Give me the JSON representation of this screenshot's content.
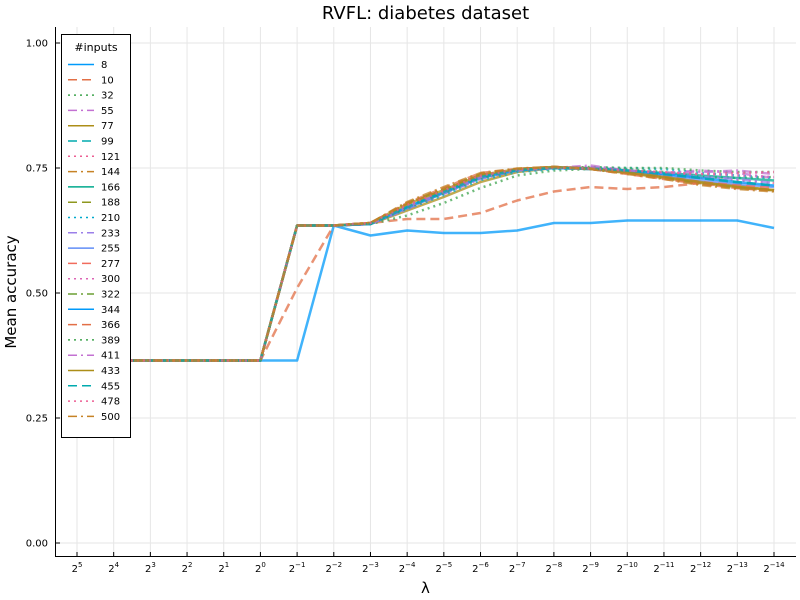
{
  "chart_data": {
    "type": "line",
    "title": "RVFL: diabetes dataset",
    "xlabel": "λ",
    "ylabel": "Mean accuracy",
    "ylim": [
      -0.03,
      1.03
    ],
    "grid": true,
    "legend": {
      "title": "#inputs",
      "placement": "top-left"
    },
    "categories": [
      "2^5",
      "2^4",
      "2^3",
      "2^2",
      "2^1",
      "2^0",
      "2^-1",
      "2^-2",
      "2^-3",
      "2^-4",
      "2^-5",
      "2^-6",
      "2^-7",
      "2^-8",
      "2^-9",
      "2^-10",
      "2^-11",
      "2^-12",
      "2^-13",
      "2^-14"
    ],
    "x_ticks": [
      {
        "base": "2",
        "exp": "5"
      },
      {
        "base": "2",
        "exp": "4"
      },
      {
        "base": "2",
        "exp": "3"
      },
      {
        "base": "2",
        "exp": "2"
      },
      {
        "base": "2",
        "exp": "1"
      },
      {
        "base": "2",
        "exp": "0"
      },
      {
        "base": "2",
        "exp": "−1"
      },
      {
        "base": "2",
        "exp": "−2"
      },
      {
        "base": "2",
        "exp": "−3"
      },
      {
        "base": "2",
        "exp": "−4"
      },
      {
        "base": "2",
        "exp": "−5"
      },
      {
        "base": "2",
        "exp": "−6"
      },
      {
        "base": "2",
        "exp": "−7"
      },
      {
        "base": "2",
        "exp": "−8"
      },
      {
        "base": "2",
        "exp": "−9"
      },
      {
        "base": "2",
        "exp": "−10"
      },
      {
        "base": "2",
        "exp": "−11"
      },
      {
        "base": "2",
        "exp": "−12"
      },
      {
        "base": "2",
        "exp": "−13"
      },
      {
        "base": "2",
        "exp": "−14"
      }
    ],
    "y_ticks": [
      {
        "value": 0.0,
        "label": "0.00"
      },
      {
        "value": 0.25,
        "label": "0.25"
      },
      {
        "value": 0.5,
        "label": "0.50"
      },
      {
        "value": 0.75,
        "label": "0.75"
      },
      {
        "value": 1.0,
        "label": "1.00"
      }
    ],
    "palette": [
      "#009AFA",
      "#E26F46",
      "#3EA44E",
      "#C371D2",
      "#AC8E18",
      "#00AAAE",
      "#ED5E93",
      "#C68225",
      "#00A98D",
      "#8E971E",
      "#00A9CD",
      "#9B7FE9",
      "#618DF6",
      "#F16C5D",
      "#DD64B5",
      "#6C9F33",
      "#009AFA",
      "#E26F46",
      "#3EA44E",
      "#C371D2",
      "#AC8E18",
      "#00AAAE",
      "#ED5E93",
      "#C68225"
    ],
    "dash_styles": [
      "solid",
      "dash",
      "dot",
      "dashdot"
    ],
    "series": [
      {
        "name": "8",
        "values": [
          0.365,
          0.365,
          0.365,
          0.365,
          0.365,
          0.365,
          0.365,
          0.635,
          0.615,
          0.625,
          0.62,
          0.62,
          0.625,
          0.64,
          0.64,
          0.645,
          0.645,
          0.645,
          0.645,
          0.63
        ]
      },
      {
        "name": "10",
        "values": [
          0.365,
          0.365,
          0.365,
          0.365,
          0.365,
          0.365,
          0.51,
          0.635,
          0.64,
          0.648,
          0.648,
          0.66,
          0.685,
          0.703,
          0.712,
          0.708,
          0.712,
          0.72,
          0.71,
          0.705
        ]
      },
      {
        "name": "32",
        "values": [
          0.365,
          0.365,
          0.365,
          0.365,
          0.365,
          0.365,
          0.635,
          0.635,
          0.638,
          0.655,
          0.68,
          0.71,
          0.735,
          0.745,
          0.748,
          0.748,
          0.742,
          0.732,
          0.73,
          0.732
        ]
      },
      {
        "name": "55",
        "values": [
          0.365,
          0.365,
          0.365,
          0.365,
          0.365,
          0.365,
          0.635,
          0.635,
          0.638,
          0.668,
          0.698,
          0.728,
          0.745,
          0.75,
          0.755,
          0.745,
          0.74,
          0.745,
          0.74,
          0.73
        ]
      },
      {
        "name": "77",
        "values": [
          0.365,
          0.365,
          0.365,
          0.365,
          0.365,
          0.365,
          0.635,
          0.635,
          0.638,
          0.665,
          0.692,
          0.722,
          0.742,
          0.75,
          0.748,
          0.74,
          0.73,
          0.72,
          0.715,
          0.705
        ]
      },
      {
        "name": "99",
        "values": [
          0.365,
          0.365,
          0.365,
          0.365,
          0.365,
          0.365,
          0.635,
          0.635,
          0.638,
          0.67,
          0.7,
          0.73,
          0.745,
          0.75,
          0.748,
          0.742,
          0.735,
          0.73,
          0.72,
          0.715
        ]
      },
      {
        "name": "121",
        "values": [
          0.365,
          0.365,
          0.365,
          0.365,
          0.365,
          0.365,
          0.635,
          0.635,
          0.64,
          0.675,
          0.705,
          0.735,
          0.748,
          0.752,
          0.75,
          0.742,
          0.735,
          0.73,
          0.725,
          0.72
        ]
      },
      {
        "name": "144",
        "values": [
          0.365,
          0.365,
          0.365,
          0.365,
          0.365,
          0.365,
          0.635,
          0.635,
          0.64,
          0.68,
          0.708,
          0.738,
          0.748,
          0.752,
          0.748,
          0.74,
          0.73,
          0.72,
          0.712,
          0.705
        ]
      },
      {
        "name": "166",
        "values": [
          0.365,
          0.365,
          0.365,
          0.365,
          0.365,
          0.365,
          0.635,
          0.635,
          0.638,
          0.672,
          0.7,
          0.732,
          0.745,
          0.752,
          0.748,
          0.745,
          0.74,
          0.735,
          0.73,
          0.725
        ]
      },
      {
        "name": "188",
        "values": [
          0.365,
          0.365,
          0.365,
          0.365,
          0.365,
          0.365,
          0.635,
          0.635,
          0.64,
          0.678,
          0.706,
          0.736,
          0.748,
          0.752,
          0.749,
          0.741,
          0.733,
          0.722,
          0.712,
          0.705
        ]
      },
      {
        "name": "210",
        "values": [
          0.365,
          0.365,
          0.365,
          0.365,
          0.365,
          0.365,
          0.635,
          0.635,
          0.638,
          0.668,
          0.696,
          0.726,
          0.742,
          0.748,
          0.75,
          0.75,
          0.748,
          0.74,
          0.735,
          0.73
        ]
      },
      {
        "name": "233",
        "values": [
          0.365,
          0.365,
          0.365,
          0.365,
          0.365,
          0.365,
          0.635,
          0.635,
          0.638,
          0.668,
          0.7,
          0.73,
          0.745,
          0.75,
          0.752,
          0.745,
          0.738,
          0.732,
          0.728,
          0.72
        ]
      },
      {
        "name": "255",
        "values": [
          0.365,
          0.365,
          0.365,
          0.365,
          0.365,
          0.365,
          0.635,
          0.635,
          0.638,
          0.67,
          0.7,
          0.73,
          0.745,
          0.75,
          0.748,
          0.742,
          0.735,
          0.725,
          0.718,
          0.712
        ]
      },
      {
        "name": "277",
        "values": [
          0.365,
          0.365,
          0.365,
          0.365,
          0.365,
          0.365,
          0.635,
          0.635,
          0.64,
          0.678,
          0.705,
          0.735,
          0.748,
          0.752,
          0.749,
          0.742,
          0.732,
          0.722,
          0.715,
          0.71
        ]
      },
      {
        "name": "300",
        "values": [
          0.365,
          0.365,
          0.365,
          0.365,
          0.365,
          0.365,
          0.635,
          0.635,
          0.638,
          0.672,
          0.702,
          0.732,
          0.746,
          0.75,
          0.749,
          0.745,
          0.74,
          0.738,
          0.735,
          0.732
        ]
      },
      {
        "name": "322",
        "values": [
          0.365,
          0.365,
          0.365,
          0.365,
          0.365,
          0.365,
          0.635,
          0.635,
          0.64,
          0.68,
          0.708,
          0.738,
          0.748,
          0.752,
          0.748,
          0.74,
          0.73,
          0.718,
          0.71,
          0.705
        ]
      },
      {
        "name": "344",
        "values": [
          0.365,
          0.365,
          0.365,
          0.365,
          0.365,
          0.365,
          0.635,
          0.635,
          0.638,
          0.672,
          0.702,
          0.732,
          0.746,
          0.75,
          0.749,
          0.744,
          0.738,
          0.73,
          0.722,
          0.715
        ]
      },
      {
        "name": "366",
        "values": [
          0.365,
          0.365,
          0.365,
          0.365,
          0.365,
          0.365,
          0.635,
          0.635,
          0.64,
          0.68,
          0.71,
          0.74,
          0.748,
          0.752,
          0.748,
          0.738,
          0.728,
          0.718,
          0.71,
          0.705
        ]
      },
      {
        "name": "389",
        "values": [
          0.365,
          0.365,
          0.365,
          0.365,
          0.365,
          0.365,
          0.635,
          0.635,
          0.638,
          0.67,
          0.7,
          0.73,
          0.745,
          0.75,
          0.752,
          0.75,
          0.75,
          0.745,
          0.742,
          0.742
        ]
      },
      {
        "name": "411",
        "values": [
          0.365,
          0.365,
          0.365,
          0.365,
          0.365,
          0.365,
          0.635,
          0.635,
          0.638,
          0.672,
          0.702,
          0.732,
          0.746,
          0.75,
          0.752,
          0.745,
          0.74,
          0.742,
          0.745,
          0.738
        ]
      },
      {
        "name": "433",
        "values": [
          0.365,
          0.365,
          0.365,
          0.365,
          0.365,
          0.365,
          0.635,
          0.635,
          0.64,
          0.678,
          0.706,
          0.736,
          0.748,
          0.752,
          0.749,
          0.741,
          0.732,
          0.722,
          0.712,
          0.706
        ]
      },
      {
        "name": "455",
        "values": [
          0.365,
          0.365,
          0.365,
          0.365,
          0.365,
          0.365,
          0.635,
          0.635,
          0.638,
          0.672,
          0.702,
          0.732,
          0.746,
          0.75,
          0.749,
          0.745,
          0.738,
          0.73,
          0.722,
          0.715
        ]
      },
      {
        "name": "478",
        "values": [
          0.365,
          0.365,
          0.365,
          0.365,
          0.365,
          0.365,
          0.635,
          0.635,
          0.64,
          0.676,
          0.705,
          0.735,
          0.747,
          0.751,
          0.749,
          0.745,
          0.742,
          0.738,
          0.74,
          0.742
        ]
      },
      {
        "name": "500",
        "values": [
          0.365,
          0.365,
          0.365,
          0.365,
          0.365,
          0.365,
          0.635,
          0.635,
          0.64,
          0.682,
          0.712,
          0.74,
          0.749,
          0.752,
          0.748,
          0.738,
          0.728,
          0.716,
          0.708,
          0.703
        ]
      }
    ]
  }
}
